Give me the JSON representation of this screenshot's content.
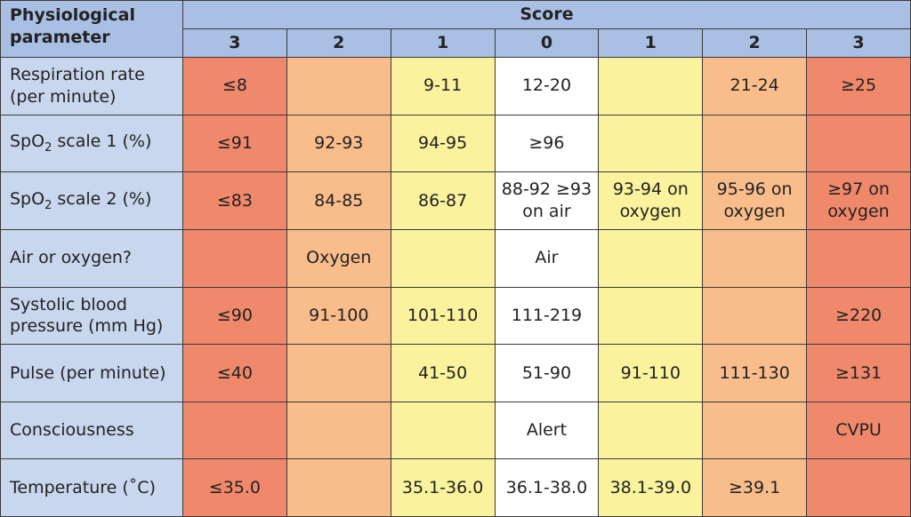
{
  "table": {
    "corner": "Physiological parameter",
    "score_title": "Score",
    "scores": [
      "3",
      "2",
      "1",
      "0",
      "1",
      "2",
      "3"
    ],
    "rows": [
      {
        "parameter": "Respiration rate (per minute)",
        "cells": [
          "≤8",
          null,
          "9-11",
          "12-20",
          null,
          "21-24",
          "≥25"
        ]
      },
      {
        "parameter": [
          "SpO",
          "2",
          " scale 1 (%)"
        ],
        "cells": [
          "≤91",
          "92-93",
          "94-95",
          "≥96",
          null,
          null,
          null
        ]
      },
      {
        "parameter": [
          "SpO",
          "2",
          " scale 2 (%)"
        ],
        "cells": [
          "≤83",
          "84-85",
          "86-87",
          "88-92 ≥93 on air",
          "93-94 on oxygen",
          "95-96 on oxygen",
          "≥97 on oxygen"
        ]
      },
      {
        "parameter": "Air or oxygen?",
        "cells": [
          null,
          "Oxygen",
          null,
          "Air",
          null,
          null,
          null
        ]
      },
      {
        "parameter": "Systolic blood pressure (mm Hg)",
        "cells": [
          "≤90",
          "91-100",
          "101-110",
          "111-219",
          null,
          null,
          "≥220"
        ]
      },
      {
        "parameter": "Pulse (per minute)",
        "cells": [
          "≤40",
          null,
          "41-50",
          "51-90",
          "91-110",
          "111-130",
          "≥131"
        ]
      },
      {
        "parameter": "Consciousness",
        "cells": [
          null,
          null,
          null,
          "Alert",
          null,
          null,
          "CVPU"
        ]
      },
      {
        "parameter": "Temperature (˚C)",
        "cells": [
          "≤35.0",
          null,
          "35.1-36.0",
          "36.1-38.0",
          "38.1-39.0",
          "≥39.1",
          null
        ]
      }
    ]
  }
}
